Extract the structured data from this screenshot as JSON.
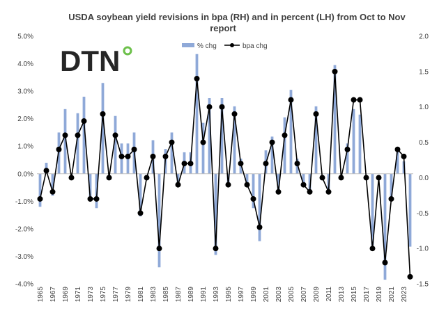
{
  "chart_data": {
    "type": "bar+line",
    "title_line1": "USDA soybean yield revisions in bpa (RH) and in percent (LH) from Oct to Nov",
    "title_line2": "report",
    "logo": "DTN",
    "left_axis": {
      "ylim": [
        -0.04,
        0.05
      ],
      "ticks": [
        "-4.0%",
        "-3.0%",
        "-2.0%",
        "-1.0%",
        "0.0%",
        "1.0%",
        "2.0%",
        "3.0%",
        "4.0%",
        "5.0%"
      ]
    },
    "right_axis": {
      "ylim": [
        -1.5,
        2.0
      ],
      "ticks": [
        "-1.5",
        "-1.0",
        "-0.5",
        "0.0",
        "0.5",
        "1.0",
        "1.5",
        "2.0"
      ]
    },
    "legend": [
      {
        "name": "% chg",
        "type": "bar",
        "color": "#8fa9d8"
      },
      {
        "name": "bpa chg",
        "type": "line",
        "color": "#000000"
      }
    ],
    "years": [
      1965,
      1966,
      1967,
      1968,
      1969,
      1970,
      1971,
      1972,
      1973,
      1974,
      1975,
      1976,
      1977,
      1978,
      1979,
      1980,
      1981,
      1982,
      1983,
      1984,
      1985,
      1986,
      1987,
      1988,
      1989,
      1990,
      1991,
      1992,
      1993,
      1994,
      1995,
      1996,
      1997,
      1998,
      1999,
      2000,
      2001,
      2002,
      2003,
      2004,
      2005,
      2006,
      2007,
      2008,
      2009,
      2010,
      2011,
      2012,
      2013,
      2014,
      2015,
      2016,
      2017,
      2018,
      2019,
      2020,
      2021,
      2022,
      2023,
      2024
    ],
    "x_tick_labels": [
      "1965",
      "1967",
      "1969",
      "1971",
      "1973",
      "1975",
      "1977",
      "1979",
      "1981",
      "1983",
      "1985",
      "1987",
      "1989",
      "1991",
      "1993",
      "1995",
      "1997",
      "1999",
      "2001",
      "2003",
      "2005",
      "2007",
      "2009",
      "2011",
      "2013",
      "2015",
      "2017",
      "2019",
      "2021",
      "2023"
    ],
    "pct_chg": [
      -0.012,
      0.004,
      -0.008,
      0.015,
      0.0235,
      0.0,
      0.022,
      0.028,
      -0.009,
      -0.0125,
      0.033,
      0.0,
      0.021,
      0.011,
      0.011,
      0.015,
      -0.0155,
      0.0,
      0.0122,
      -0.034,
      0.009,
      0.015,
      -0.004,
      0.0078,
      0.0078,
      0.0435,
      0.0185,
      0.0275,
      -0.0295,
      0.0275,
      -0.0045,
      0.0245,
      0.0055,
      -0.0035,
      -0.0125,
      -0.0245,
      0.0085,
      0.0135,
      -0.0075,
      0.0205,
      0.0305,
      0.0055,
      -0.0035,
      -0.006,
      0.0245,
      0.0,
      -0.006,
      0.0395,
      0.0,
      0.011,
      0.0235,
      0.0215,
      0.0,
      -0.026,
      0.0,
      -0.0385,
      -0.0085,
      0.0095,
      0.0045,
      -0.0265
    ],
    "bpa_chg": [
      -0.3,
      0.1,
      -0.2,
      0.4,
      0.6,
      0.0,
      0.6,
      0.8,
      -0.3,
      -0.3,
      0.9,
      0.0,
      0.6,
      0.3,
      0.3,
      0.4,
      -0.5,
      0.0,
      0.3,
      -1.0,
      0.3,
      0.5,
      -0.1,
      0.2,
      0.2,
      1.4,
      0.5,
      1.0,
      -1.0,
      1.0,
      -0.1,
      0.9,
      0.2,
      -0.1,
      -0.3,
      -0.7,
      0.2,
      0.5,
      -0.2,
      0.6,
      1.1,
      0.2,
      -0.1,
      -0.2,
      0.9,
      0.0,
      -0.2,
      1.5,
      0.0,
      0.4,
      1.1,
      1.1,
      0.0,
      -1.0,
      0.0,
      -1.2,
      -0.3,
      0.4,
      0.3,
      -1.4
    ]
  }
}
